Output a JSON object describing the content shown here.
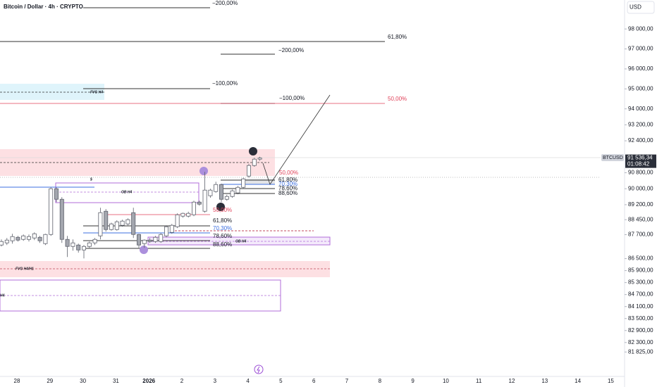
{
  "chart_data": {
    "type": "candlestick",
    "title": "Bitcoin / Dollar · 4h · CRYPTO",
    "currency": "USD",
    "symbol": "BTCUSD",
    "countdown": "01:08:42",
    "last_price": {
      "value": 91536.34,
      "label": "91 536,34"
    },
    "up_color": "#ffffff",
    "down_color": "#a3a6ae",
    "outline_color": "#5d606b",
    "x_labels": [
      "28",
      "29",
      "30",
      "31",
      "2026",
      "2",
      "3",
      "4",
      "5",
      "6",
      "7",
      "8",
      "9",
      "10",
      "11",
      "12",
      "13",
      "14",
      "15"
    ],
    "open": [
      87181,
      87287,
      87392,
      87568,
      87463,
      87463,
      87533,
      87568,
      87251,
      87709,
      90000,
      89471,
      87463,
      87110,
      87181,
      86934,
      87110,
      87287,
      87639,
      88872,
      87956,
      87956,
      88168,
      88238,
      88800,
      87709,
      87251,
      87427,
      87357,
      87357,
      87639,
      87815,
      88097,
      88626,
      88626,
      88696,
      89330,
      88872,
      89648,
      89859,
      90211,
      89471,
      89612,
      89789,
      90070,
      90634,
      91163,
      91480
    ],
    "high": [
      87463,
      87533,
      87745,
      87639,
      87709,
      87709,
      87815,
      87639,
      87745,
      90070,
      90070,
      89577,
      87639,
      87463,
      87251,
      87181,
      87357,
      87533,
      89049,
      88980,
      88300,
      88420,
      88449,
      88520,
      89049,
      87745,
      87463,
      87533,
      87639,
      87780,
      88168,
      88238,
      88767,
      88800,
      88850,
      89400,
      89400,
      90846,
      90000,
      90350,
      90250,
      89700,
      89960,
      90140,
      90550,
      91250,
      91550,
      91600
    ],
    "low": [
      87110,
      87181,
      87251,
      87357,
      87392,
      87357,
      87427,
      87287,
      87181,
      87639,
      89330,
      87287,
      86582,
      86900,
      86800,
      86511,
      87040,
      87181,
      87463,
      87850,
      87900,
      87900,
      88100,
      88168,
      87533,
      87040,
      87040,
      87290,
      87290,
      87290,
      87568,
      87745,
      88030,
      88550,
      88560,
      88626,
      89150,
      88800,
      89550,
      89800,
      89330,
      89400,
      89550,
      89720,
      90000,
      90550,
      91100,
      91400
    ],
    "close": [
      87357,
      87427,
      87604,
      87427,
      87639,
      87604,
      87745,
      87392,
      87709,
      90000,
      89471,
      87463,
      87110,
      87287,
      86934,
      87110,
      87287,
      87463,
      88802,
      87956,
      88238,
      88344,
      88379,
      88449,
      87709,
      87181,
      87427,
      87357,
      87568,
      87709,
      88097,
      88168,
      88696,
      88767,
      88767,
      89330,
      89225,
      89930,
      89930,
      90211,
      89471,
      89612,
      89894,
      90070,
      90493,
      91163,
      91480,
      91536.34
    ],
    "ylim": [
      80600,
      99450
    ],
    "yticks": [
      {
        "value": 98000,
        "label": "98 000,00"
      },
      {
        "value": 97000,
        "label": "97 000,00"
      },
      {
        "value": 96000,
        "label": "96 000,00"
      },
      {
        "value": 95000,
        "label": "95 000,00"
      },
      {
        "value": 94000,
        "label": "94 000,00"
      },
      {
        "value": 93200,
        "label": "93 200,00"
      },
      {
        "value": 92400,
        "label": "92 400,00"
      },
      {
        "value": 90800,
        "label": "90 800,00"
      },
      {
        "value": 90000,
        "label": "90 000,00"
      },
      {
        "value": 89200,
        "label": "89 200,00"
      },
      {
        "value": 88450,
        "label": "88 450,00"
      },
      {
        "value": 87700,
        "label": "87 700,00"
      },
      {
        "value": 86500,
        "label": "86 500,00"
      },
      {
        "value": 85900,
        "label": "85 900,00"
      },
      {
        "value": 85300,
        "label": "85 300,00"
      },
      {
        "value": 84700,
        "label": "84 700,00"
      },
      {
        "value": 84100,
        "label": "84 100,00"
      },
      {
        "value": 83500,
        "label": "83 500,00"
      },
      {
        "value": 82900,
        "label": "82 900,00"
      },
      {
        "value": 82300,
        "label": "82 300,00"
      },
      {
        "value": 81825,
        "label": "81 825,00"
      }
    ],
    "annotations": [
      "−200,00%",
      "61,80%",
      "−200,00%",
      "FVG H4",
      "−100,00%",
      "−100,00%",
      "50,00%",
      "50,00%",
      "$",
      "61,80%",
      "70,30%",
      "OB H4",
      "78,60%",
      "88,60%",
      "50,00%",
      "61,80%",
      "70,30%",
      "78,60%",
      "OB H4",
      "88,60%",
      "FVG H4/H1",
      "H4"
    ]
  }
}
